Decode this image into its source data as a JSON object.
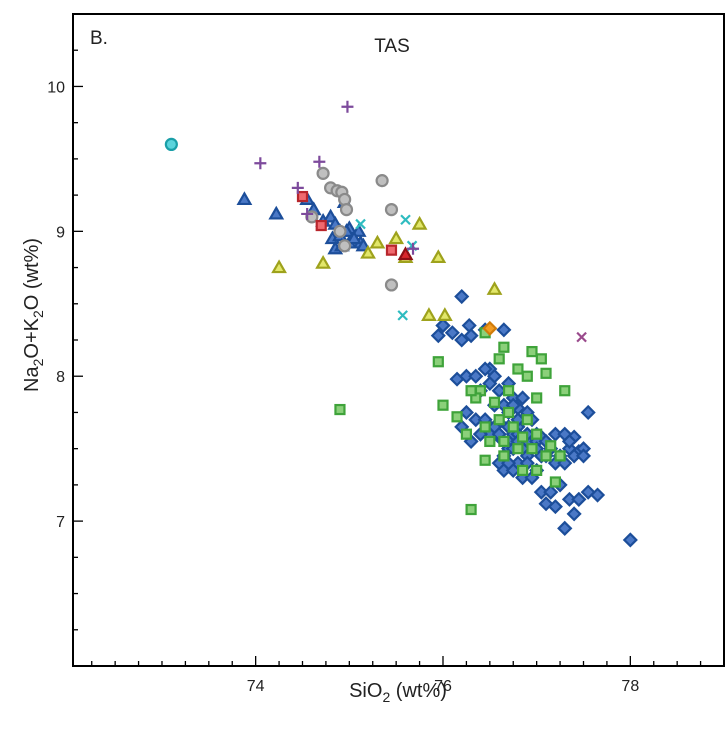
{
  "chart_data": {
    "type": "scatter",
    "panel_label": "B.",
    "title": "TAS",
    "xlabel": {
      "prefix": "SiO",
      "sub": "2",
      "suffix": " (wt%)"
    },
    "ylabel": {
      "p1": "Na",
      "s1": "2",
      "p2": "O+K",
      "s2": "2",
      "p3": "O (wt%)"
    },
    "xlim": [
      72.05,
      79.0
    ],
    "ylim": [
      6.0,
      10.5
    ],
    "x_ticks": [
      74,
      76,
      78
    ],
    "y_ticks": [
      7,
      8,
      9,
      10
    ],
    "x_minor_step": 0.25,
    "y_minor_step": 0.25,
    "grid": false,
    "legend": "none",
    "series": [
      {
        "marker": "diamond",
        "fill": "#4a78c6",
        "stroke": "#1c4e9a",
        "x": [
          76.2,
          76.28,
          76.0,
          76.1,
          76.2,
          76.3,
          76.45,
          76.65,
          76.5,
          76.25,
          76.15,
          76.45,
          76.55,
          76.35,
          76.4,
          76.5,
          76.6,
          76.7,
          76.75,
          76.85,
          76.55,
          76.65,
          76.7,
          76.8,
          76.9,
          76.95,
          76.25,
          76.35,
          76.45,
          76.5,
          76.6,
          76.7,
          76.8,
          76.85,
          76.9,
          77.0,
          77.05,
          76.4,
          76.5,
          76.6,
          76.65,
          76.7,
          76.75,
          76.8,
          76.85,
          76.9,
          76.95,
          77.0,
          77.1,
          77.2,
          77.3,
          77.4,
          76.2,
          76.3,
          76.4,
          76.55,
          76.65,
          76.7,
          76.75,
          76.8,
          76.85,
          76.9,
          77.0,
          77.05,
          77.15,
          77.25,
          77.35,
          77.45,
          76.6,
          76.7,
          76.8,
          76.9,
          77.0,
          77.1,
          77.2,
          77.3,
          77.4,
          77.5,
          76.65,
          76.75,
          76.85,
          76.95,
          77.05,
          77.15,
          77.25,
          77.35,
          77.45,
          77.55,
          76.7,
          76.8,
          77.1,
          77.2,
          77.3,
          77.45,
          77.5,
          77.65,
          77.3,
          77.4,
          77.55,
          78.0,
          76.8,
          76.9,
          77.05,
          76.7,
          76.6,
          77.35,
          76.75,
          76.0,
          75.95
        ],
        "y": [
          8.55,
          8.35,
          8.35,
          8.3,
          8.25,
          8.28,
          8.32,
          8.32,
          8.05,
          8.0,
          7.98,
          8.05,
          8.0,
          8.0,
          7.9,
          7.95,
          7.9,
          7.95,
          7.85,
          7.85,
          7.8,
          7.8,
          7.75,
          7.78,
          7.75,
          7.7,
          7.75,
          7.7,
          7.7,
          7.65,
          7.68,
          7.65,
          7.65,
          7.7,
          7.6,
          7.6,
          7.58,
          7.6,
          7.6,
          7.58,
          7.55,
          7.55,
          7.6,
          7.6,
          7.55,
          7.55,
          7.5,
          7.55,
          7.55,
          7.6,
          7.6,
          7.58,
          7.65,
          7.55,
          7.6,
          7.65,
          7.45,
          7.5,
          7.5,
          7.55,
          7.5,
          7.45,
          7.5,
          7.45,
          7.5,
          7.45,
          7.5,
          7.48,
          7.4,
          7.38,
          7.4,
          7.4,
          7.35,
          7.45,
          7.4,
          7.4,
          7.45,
          7.5,
          7.35,
          7.35,
          7.3,
          7.3,
          7.2,
          7.2,
          7.25,
          7.15,
          7.15,
          7.2,
          7.4,
          7.55,
          7.12,
          7.1,
          6.95,
          7.15,
          7.45,
          7.18,
          6.95,
          7.05,
          7.75,
          6.87,
          7.7,
          7.6,
          7.45,
          7.65,
          7.6,
          7.55,
          7.8,
          8.35,
          8.28
        ]
      },
      {
        "marker": "square",
        "fill": "#8bd07a",
        "stroke": "#3fa33a",
        "x": [
          76.3,
          76.45,
          76.65,
          76.95,
          77.05,
          76.35,
          76.6,
          76.8,
          76.9,
          77.1,
          76.4,
          76.55,
          76.7,
          77.0,
          76.45,
          76.6,
          76.75,
          76.9,
          77.0,
          77.15,
          77.3,
          76.5,
          76.65,
          76.8,
          76.95,
          77.1,
          77.25,
          76.65,
          76.85,
          77.0,
          77.2,
          76.35,
          74.9,
          76.0,
          76.15,
          76.25,
          76.45,
          76.85,
          76.3,
          76.7,
          75.95
        ],
        "y": [
          7.08,
          8.3,
          8.2,
          8.17,
          8.12,
          7.9,
          8.12,
          8.05,
          8.0,
          8.02,
          7.9,
          7.82,
          7.9,
          7.85,
          7.65,
          7.7,
          7.65,
          7.7,
          7.6,
          7.52,
          7.9,
          7.55,
          7.55,
          7.5,
          7.5,
          7.45,
          7.45,
          7.45,
          7.35,
          7.35,
          7.27,
          7.85,
          7.77,
          7.8,
          7.72,
          7.6,
          7.42,
          7.58,
          7.9,
          7.75,
          8.1
        ]
      },
      {
        "marker": "triangle",
        "fill": "#4a78c6",
        "stroke": "#1c4e9a",
        "x": [
          73.88,
          74.22,
          74.55,
          74.62,
          74.72,
          74.8,
          74.95,
          74.85,
          74.9,
          75.0,
          75.1,
          74.82,
          74.9,
          75.0,
          74.97,
          75.12,
          74.85,
          74.92,
          75.05,
          75.15
        ],
        "y": [
          9.22,
          9.12,
          9.22,
          9.15,
          9.07,
          9.1,
          9.2,
          9.05,
          9.0,
          9.02,
          9.0,
          8.95,
          8.97,
          8.92,
          9.0,
          8.92,
          8.88,
          8.9,
          8.95,
          8.9
        ]
      },
      {
        "marker": "triangle",
        "fill": "#e2e76a",
        "stroke": "#9ea21c",
        "x": [
          74.25,
          74.72,
          75.2,
          75.3,
          75.5,
          75.6,
          75.75,
          75.95,
          75.85,
          76.02,
          76.55
        ],
        "y": [
          8.75,
          8.78,
          8.85,
          8.92,
          8.95,
          8.82,
          9.05,
          8.82,
          8.42,
          8.42,
          8.6
        ]
      },
      {
        "marker": "circle",
        "fill": "#bfbfbf",
        "stroke": "#8a8a8a",
        "x": [
          74.6,
          74.72,
          74.8,
          74.87,
          74.92,
          74.95,
          74.97,
          74.9,
          75.35,
          75.45,
          75.45,
          74.95
        ],
        "y": [
          9.1,
          9.4,
          9.3,
          9.28,
          9.27,
          9.22,
          9.15,
          9.0,
          9.35,
          9.15,
          8.63,
          8.9
        ]
      },
      {
        "marker": "circle",
        "fill": "#5bd4dc",
        "stroke": "#1a9fa8",
        "x": [
          73.1
        ],
        "y": [
          9.6
        ]
      },
      {
        "marker": "square",
        "fill": "#ef6a6f",
        "stroke": "#b8262c",
        "x": [
          74.5,
          74.7,
          75.45
        ],
        "y": [
          9.24,
          9.04,
          8.87
        ]
      },
      {
        "marker": "triangle",
        "fill": "#d8282c",
        "stroke": "#8e1014",
        "x": [
          75.6
        ],
        "y": [
          8.84
        ]
      },
      {
        "marker": "diamond",
        "fill": "#f39c22",
        "stroke": "#d07c0a",
        "x": [
          76.5
        ],
        "y": [
          8.33
        ]
      },
      {
        "marker": "plus",
        "fill": "none",
        "stroke": "#7d4a9c",
        "x": [
          74.05,
          74.45,
          74.68,
          74.98,
          74.55
        ],
        "y": [
          9.47,
          9.3,
          9.48,
          9.86,
          9.12
        ]
      },
      {
        "marker": "cross",
        "fill": "none",
        "stroke": "#2ebcc0",
        "x": [
          75.12,
          75.6,
          75.67,
          75.57
        ],
        "y": [
          9.05,
          9.08,
          8.9,
          8.42
        ]
      },
      {
        "marker": "cross",
        "fill": "none",
        "stroke": "#9a4a8c",
        "x": [
          77.48
        ],
        "y": [
          8.27
        ]
      },
      {
        "marker": "plus",
        "fill": "none",
        "stroke": "#7d4a9c",
        "x": [
          75.68
        ],
        "y": [
          8.88
        ]
      }
    ]
  }
}
